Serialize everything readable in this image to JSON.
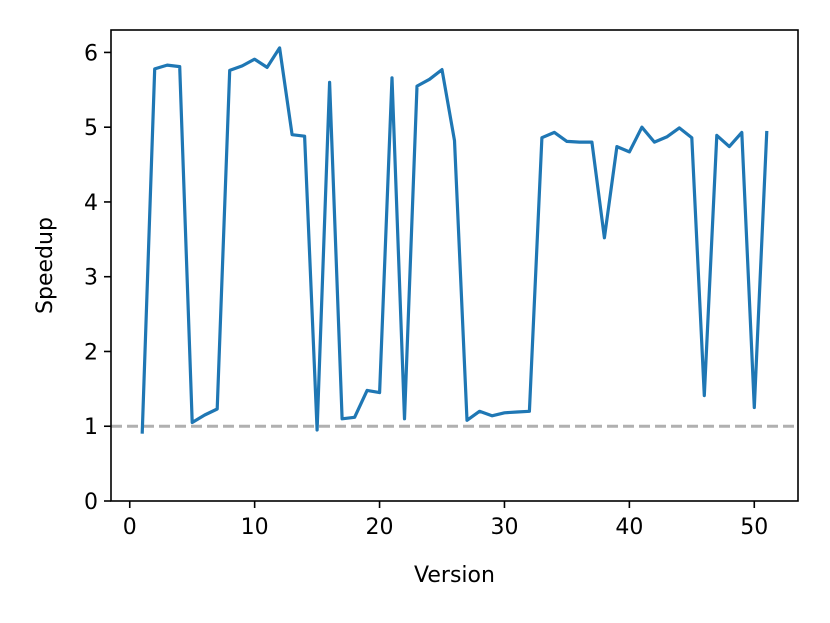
{
  "chart_data": {
    "type": "line",
    "title": "",
    "xlabel": "Version",
    "ylabel": "Speedup",
    "xlim": [
      -1.5,
      53.5
    ],
    "ylim": [
      0,
      6.3
    ],
    "xticks": [
      0,
      10,
      20,
      30,
      40,
      50
    ],
    "yticks": [
      0,
      1,
      2,
      3,
      4,
      5,
      6
    ],
    "grid": false,
    "legend": "none",
    "reference_line": {
      "y": 1,
      "style": "dashed",
      "color": "#b0b0b0"
    },
    "series": [
      {
        "color": "#1f77b4",
        "x": [
          1,
          2,
          3,
          4,
          5,
          6,
          7,
          8,
          9,
          10,
          11,
          12,
          13,
          14,
          15,
          16,
          17,
          18,
          19,
          20,
          21,
          22,
          23,
          24,
          25,
          26,
          27,
          28,
          29,
          30,
          31,
          32,
          33,
          34,
          35,
          36,
          37,
          38,
          39,
          40,
          41,
          42,
          43,
          44,
          45,
          46,
          47,
          48,
          49,
          50,
          51
        ],
        "y": [
          0.9,
          5.78,
          5.83,
          5.81,
          1.05,
          1.15,
          1.23,
          5.76,
          5.82,
          5.91,
          5.8,
          6.06,
          4.9,
          4.88,
          0.95,
          5.6,
          1.1,
          1.12,
          1.48,
          1.45,
          5.66,
          1.1,
          5.55,
          5.64,
          5.77,
          4.82,
          1.08,
          1.2,
          1.14,
          1.18,
          1.19,
          1.2,
          4.86,
          4.93,
          4.81,
          4.8,
          4.8,
          3.52,
          4.74,
          4.67,
          5.0,
          4.8,
          4.87,
          4.99,
          4.86,
          1.41,
          4.89,
          4.74,
          4.93,
          1.25,
          4.95
        ]
      }
    ]
  }
}
